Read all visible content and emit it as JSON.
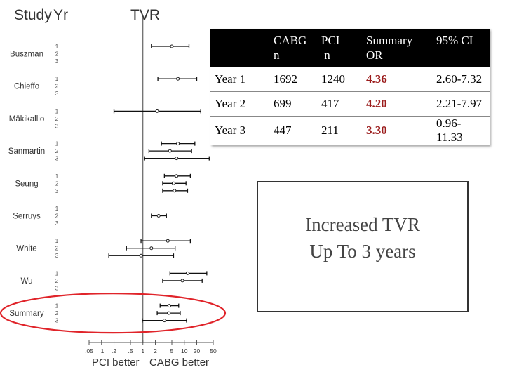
{
  "headers": {
    "study": "Study",
    "year": "Yr",
    "outcome": "TVR"
  },
  "chart_data": {
    "type": "forest",
    "scale": "log",
    "xlim": [
      0.05,
      50
    ],
    "x_ticks": [
      ".05",
      ".1",
      ".2",
      ".5",
      "1",
      "2",
      "5",
      "10",
      "20",
      "50"
    ],
    "x_tick_values": [
      0.05,
      0.1,
      0.2,
      0.5,
      1,
      2,
      5,
      10,
      20,
      50
    ],
    "xlabel_left": "PCI better",
    "xlabel_right": "CABG better",
    "studies": [
      {
        "name": "Buszman",
        "years": [
          {
            "year": "1",
            "or": 5,
            "lo": 1.6,
            "hi": 13
          },
          {
            "year": "2"
          },
          {
            "year": "3"
          }
        ]
      },
      {
        "name": "Chieffo",
        "years": [
          {
            "year": "1",
            "or": 7,
            "lo": 2.3,
            "hi": 20
          },
          {
            "year": "2"
          },
          {
            "year": "3"
          }
        ]
      },
      {
        "name": "Mäkikallio",
        "years": [
          {
            "year": "1",
            "or": 2.2,
            "lo": 0.2,
            "hi": 25
          },
          {
            "year": "2"
          },
          {
            "year": "3"
          }
        ]
      },
      {
        "name": "Sanmartin",
        "years": [
          {
            "year": "1",
            "or": 7,
            "lo": 2.8,
            "hi": 18
          },
          {
            "year": "2",
            "or": 4.5,
            "lo": 1.4,
            "hi": 15
          },
          {
            "year": "3",
            "or": 6.5,
            "lo": 1.1,
            "hi": 40
          }
        ]
      },
      {
        "name": "Seung",
        "years": [
          {
            "year": "1",
            "or": 6.5,
            "lo": 3.3,
            "hi": 14
          },
          {
            "year": "2",
            "or": 5.5,
            "lo": 3,
            "hi": 11
          },
          {
            "year": "3",
            "or": 5.8,
            "lo": 3,
            "hi": 12
          }
        ]
      },
      {
        "name": "Serruys",
        "years": [
          {
            "year": "1"
          },
          {
            "year": "2",
            "or": 2.4,
            "lo": 1.6,
            "hi": 3.7
          },
          {
            "year": "3"
          }
        ]
      },
      {
        "name": "White",
        "years": [
          {
            "year": "1",
            "or": 4,
            "lo": 0.9,
            "hi": 14
          },
          {
            "year": "2",
            "or": 1.6,
            "lo": 0.4,
            "hi": 6
          },
          {
            "year": "3",
            "or": 0.9,
            "lo": 0.15,
            "hi": 5.5
          }
        ]
      },
      {
        "name": "Wu",
        "years": [
          {
            "year": "1",
            "or": 12,
            "lo": 4.5,
            "hi": 35
          },
          {
            "year": "2",
            "or": 9,
            "lo": 3,
            "hi": 27
          },
          {
            "year": "3"
          }
        ]
      },
      {
        "name": "Summary",
        "highlight": true,
        "years": [
          {
            "year": "1",
            "or": 4.36,
            "lo": 2.6,
            "hi": 7.32
          },
          {
            "year": "2",
            "or": 4.2,
            "lo": 2.21,
            "hi": 7.97
          },
          {
            "year": "3",
            "or": 3.3,
            "lo": 0.96,
            "hi": 11.33
          }
        ]
      }
    ]
  },
  "results_table": {
    "columns": [
      {
        "line1": "",
        "line2": ""
      },
      {
        "line1": "CABG",
        "line2": "n"
      },
      {
        "line1": "PCI",
        "line2": " n"
      },
      {
        "line1": "Summary",
        "line2": "OR"
      },
      {
        "line1": "95% CI",
        "line2": ""
      }
    ],
    "rows": [
      {
        "label": "Year 1",
        "cabg_n": "1692",
        "pci_n": "1240",
        "or": "4.36",
        "ci": "2.60-7.32"
      },
      {
        "label": "Year 2",
        "cabg_n": "699",
        "pci_n": "417",
        "or": "4.20",
        "ci": "2.21-7.97"
      },
      {
        "label": "Year 3",
        "cabg_n": "447",
        "pci_n": "211",
        "or": "3.30",
        "ci": "0.96-11.33"
      }
    ]
  },
  "callout": {
    "line1": "Increased TVR",
    "line2": "Up To 3 years"
  },
  "colors": {
    "highlight_ellipse": "#e0242a",
    "summary_or": "#9b1c1c",
    "table_header": "#000000"
  }
}
